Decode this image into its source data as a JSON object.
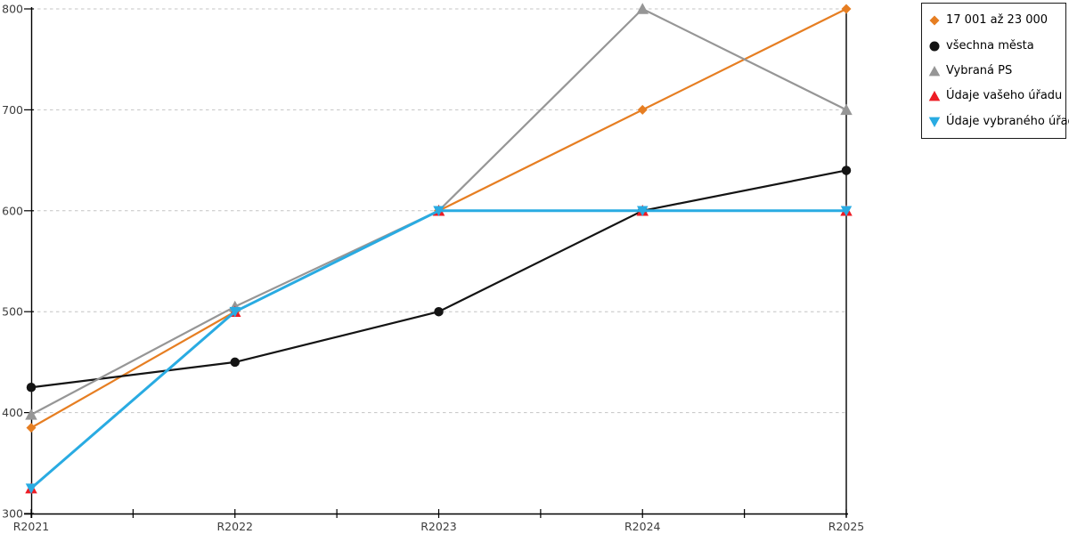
{
  "chart_data": {
    "type": "line",
    "title": "",
    "xlabel": "",
    "ylabel": "",
    "categories": [
      "R2021",
      "R2022",
      "R2023",
      "R2024",
      "R2025"
    ],
    "ylim": [
      300,
      800
    ],
    "yticks": [
      300,
      400,
      500,
      600,
      700,
      800
    ],
    "grid": "horizontal dashed gridlines at y ticks",
    "legend_position": "outside top-right, bordered box",
    "axis_color": "#000000",
    "grid_color": "#c4c4c4",
    "tick_label_color": "#3d3d3d",
    "series": [
      {
        "name": "17 001 až 23 000",
        "color": "#e67e22",
        "marker": "diamond",
        "line_width": 2.2,
        "values": [
          385,
          500,
          600,
          700,
          800
        ]
      },
      {
        "name": "všechna města",
        "color": "#141414",
        "marker": "circle",
        "line_width": 2.2,
        "values": [
          425,
          450,
          500,
          600,
          640
        ]
      },
      {
        "name": "Vybraná PS",
        "color": "#969696",
        "marker": "triangle-up",
        "line_width": 2.2,
        "values": [
          398,
          505,
          600,
          800,
          700
        ]
      },
      {
        "name": "Údaje vašeho úřadu",
        "color": "#ed1c24",
        "marker": "triangle-up",
        "line_width": 2.2,
        "values": [
          325,
          500,
          600,
          600,
          600
        ]
      },
      {
        "name": "Údaje vybraného úřadu",
        "color": "#29abe2",
        "marker": "triangle-down",
        "line_width": 3,
        "values": [
          325,
          500,
          600,
          600,
          600
        ]
      }
    ]
  }
}
